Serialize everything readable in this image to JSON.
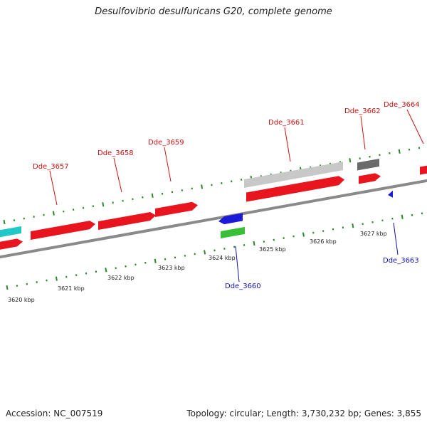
{
  "title": "Desulfovibrio desulfuricans G20, complete genome",
  "footer": {
    "accession": "Accession: NC_007519",
    "summary": "Topology: circular; Length: 3,730,232 bp; Genes: 3,855"
  },
  "colors": {
    "forward_gene": "#e8141e",
    "reverse_gene_blue": "#1a1ad8",
    "rna_green": "#38c038",
    "cyan_gene": "#20c8c8",
    "gray_light": "#c8c8c8",
    "gray_dark": "#6a6a6a",
    "tick": "#2a8a2a",
    "label_forward": "#cc1111",
    "label_reverse": "#1111aa"
  },
  "kbp_labels": [
    {
      "text": "3620 kbp"
    },
    {
      "text": "3621 kbp"
    },
    {
      "text": "3622 kbp"
    },
    {
      "text": "3623 kbp"
    },
    {
      "text": "3624 kbp"
    },
    {
      "text": "3625 kbp"
    },
    {
      "text": "3626 kbp"
    },
    {
      "text": "3627 kbp"
    }
  ],
  "gene_labels": [
    {
      "text": "Dde_3657",
      "strand": "forward"
    },
    {
      "text": "Dde_3658",
      "strand": "forward"
    },
    {
      "text": "Dde_3659",
      "strand": "forward"
    },
    {
      "text": "Dde_3661",
      "strand": "forward"
    },
    {
      "text": "Dde_3662",
      "strand": "forward"
    },
    {
      "text": "Dde_3664",
      "strand": "forward"
    },
    {
      "text": "Dde_3660",
      "strand": "reverse"
    },
    {
      "text": "Dde_3663",
      "strand": "reverse"
    }
  ]
}
